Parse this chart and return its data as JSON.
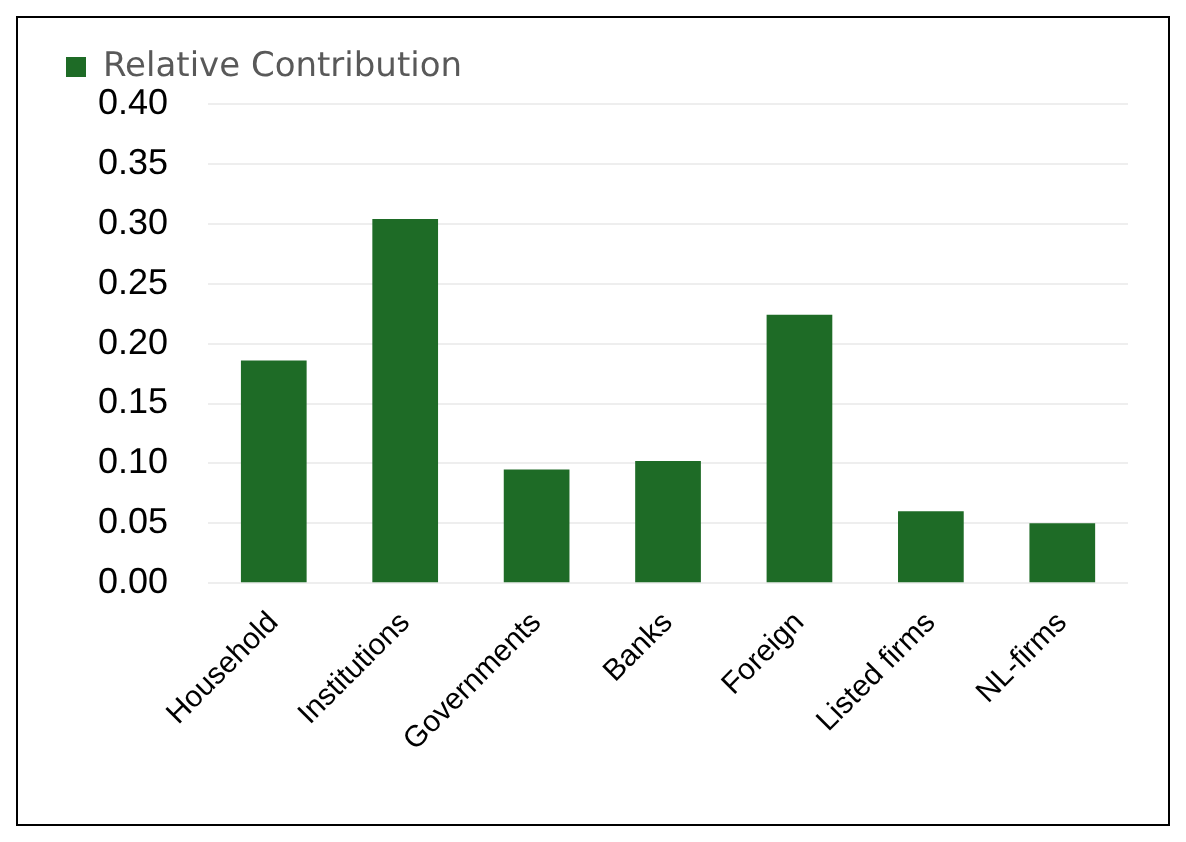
{
  "chart_data": {
    "type": "bar",
    "categories": [
      "Household",
      "Institutions",
      "Governments",
      "Banks",
      "Foreign",
      "Listed firms",
      "NL-firms"
    ],
    "series": [
      {
        "name": "Relative Contribution",
        "color": "#1e6b26",
        "values": [
          0.186,
          0.304,
          0.095,
          0.102,
          0.224,
          0.06,
          0.05
        ]
      }
    ],
    "ylim": [
      0,
      0.4
    ],
    "yticks": [
      {
        "value": 0,
        "label": "0.00"
      },
      {
        "value": 0.05,
        "label": "0.05"
      },
      {
        "value": 0.1,
        "label": "0.10"
      },
      {
        "value": 0.15,
        "label": "0.15"
      },
      {
        "value": 0.2,
        "label": "0.20"
      },
      {
        "value": 0.25,
        "label": "0.25"
      },
      {
        "value": 0.3,
        "label": "0.30"
      },
      {
        "value": 0.35,
        "label": "0.35"
      },
      {
        "value": 0.4,
        "label": "0.40"
      }
    ],
    "grid": "y",
    "legend": "top left"
  }
}
